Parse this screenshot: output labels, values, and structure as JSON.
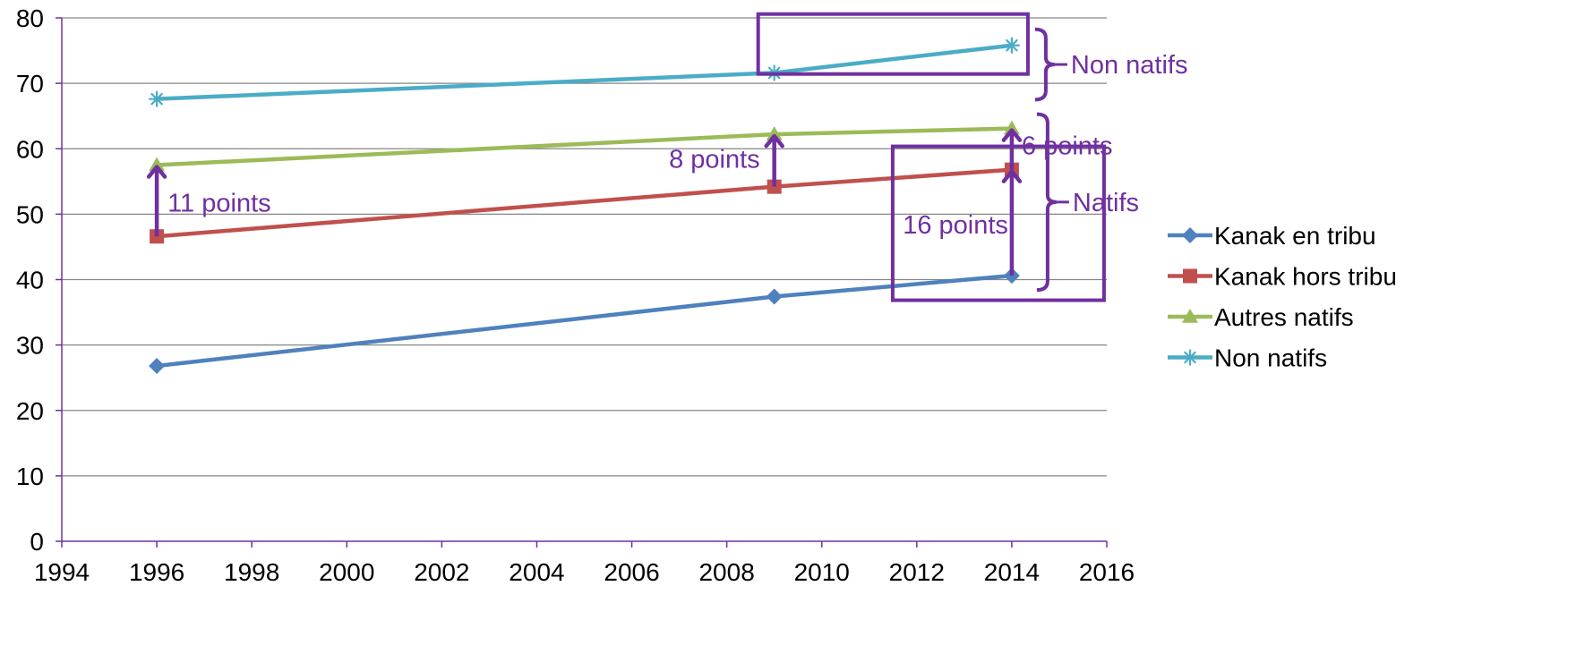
{
  "chart_data": {
    "type": "line",
    "title": "",
    "xlabel": "",
    "ylabel": "",
    "xlim": [
      1994,
      2016
    ],
    "ylim": [
      0,
      80
    ],
    "x_ticks": [
      "1994",
      "1996",
      "1998",
      "2000",
      "2002",
      "2004",
      "2006",
      "2008",
      "2010",
      "2012",
      "2014",
      "2016"
    ],
    "y_ticks": [
      "0",
      "10",
      "20",
      "30",
      "40",
      "50",
      "60",
      "70",
      "80"
    ],
    "grid": true,
    "legend_position": "right",
    "x": [
      1996,
      2009,
      2014
    ],
    "series": [
      {
        "name": "Kanak en tribu",
        "values": [
          26.8,
          37.4,
          40.6
        ],
        "color": "#4F81BD",
        "marker": "diamond"
      },
      {
        "name": "Kanak hors tribu",
        "values": [
          46.6,
          54.2,
          56.8
        ],
        "color": "#C0504D",
        "marker": "square"
      },
      {
        "name": "Autres natifs",
        "values": [
          57.5,
          62.2,
          63.1
        ],
        "color": "#9BBB59",
        "marker": "triangle"
      },
      {
        "name": "Non natifs",
        "values": [
          67.6,
          71.6,
          75.8
        ],
        "color": "#4BACC6",
        "marker": "star"
      }
    ],
    "annotation_color": "#7030A0",
    "gap_annotations": [
      {
        "text": "11 points",
        "x": 1996,
        "from": 46.6,
        "to": 57.5
      },
      {
        "text": "8 points",
        "x": 2009,
        "from": 54.2,
        "to": 62.2
      },
      {
        "text": "16 points",
        "x": 2014,
        "from": 40.6,
        "to": 56.8
      },
      {
        "text": "6 points",
        "x": 2014,
        "from": 56.8,
        "to": 63.1
      }
    ],
    "group_annotations": [
      {
        "text": "Non natifs",
        "from": 71.6,
        "to": 75.8
      },
      {
        "text": "Natifs",
        "from": 40.6,
        "to": 63.1
      }
    ]
  }
}
